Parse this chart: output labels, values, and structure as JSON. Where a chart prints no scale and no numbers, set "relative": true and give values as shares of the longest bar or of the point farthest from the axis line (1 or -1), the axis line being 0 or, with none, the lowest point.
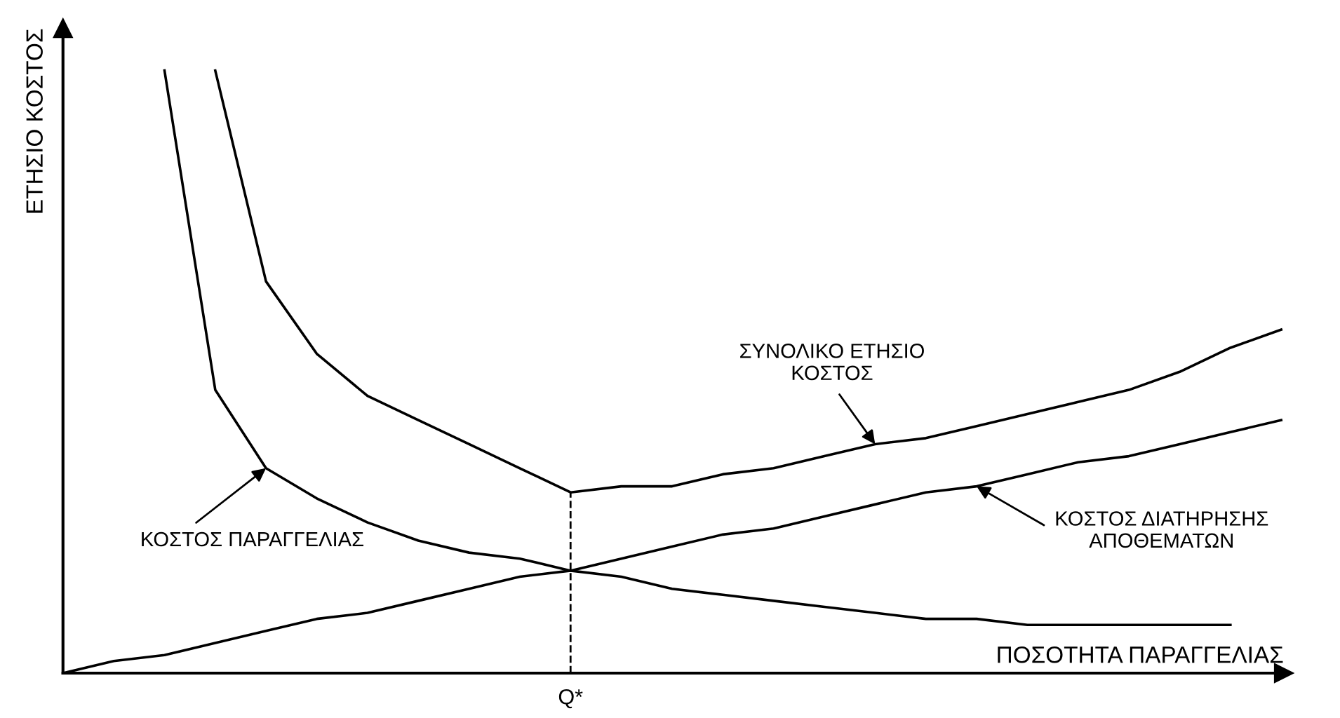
{
  "chart_data": {
    "type": "line",
    "relative": true,
    "xlabel": "ΠΟΣΟΤΗΤΑ ΠΑΡΑΓΓΕΛΙΑΣ",
    "ylabel": "ΕΤΗΣΙΟ ΚΟΣΤΟΣ",
    "marker": "none",
    "line_style": "solid",
    "categories": [
      null,
      null,
      null,
      null,
      null,
      null,
      null,
      null,
      null,
      null,
      null,
      null,
      null,
      null,
      null,
      null,
      null,
      null,
      null,
      null,
      null,
      null,
      null,
      null,
      null
    ],
    "series": [
      {
        "name": "ΣΥΝΟΛΙΚΟ ΕΤΗΣΙΟ\nΚΟΣΤΟΣ",
        "color": "#000000",
        "values": [
          null,
          null,
          null,
          1.0,
          0.65,
          0.53,
          0.46,
          0.42,
          0.38,
          0.34,
          0.3,
          0.31,
          0.31,
          0.33,
          0.34,
          0.36,
          0.38,
          0.39,
          0.41,
          0.43,
          0.45,
          0.47,
          0.5,
          0.54,
          0.57
        ]
      },
      {
        "name": "ΚΟΣΤΟΣ ΠΑΡΑΓΓΕΛΙΑΣ",
        "color": "#000000",
        "values": [
          null,
          null,
          1.0,
          0.47,
          0.34,
          0.29,
          0.25,
          0.22,
          0.2,
          0.19,
          0.17,
          0.16,
          0.14,
          0.13,
          0.12,
          0.11,
          0.1,
          0.09,
          0.09,
          0.08,
          0.08,
          0.08,
          0.08,
          0.08,
          null
        ]
      },
      {
        "name": "ΚΟΣΤΟΣ ΔΙΑΤΗΡΗΣΗΣ\nΑΠΟΘΕΜΑΤΩΝ",
        "color": "#000000",
        "values": [
          0,
          0.02,
          0.03,
          0.05,
          0.07,
          0.09,
          0.1,
          0.12,
          0.14,
          0.16,
          0.17,
          0.19,
          0.21,
          0.23,
          0.24,
          0.26,
          0.28,
          0.3,
          0.31,
          0.33,
          0.35,
          0.36,
          0.38,
          0.4,
          0.42
        ]
      }
    ],
    "annotations": [
      "Q*"
    ]
  }
}
